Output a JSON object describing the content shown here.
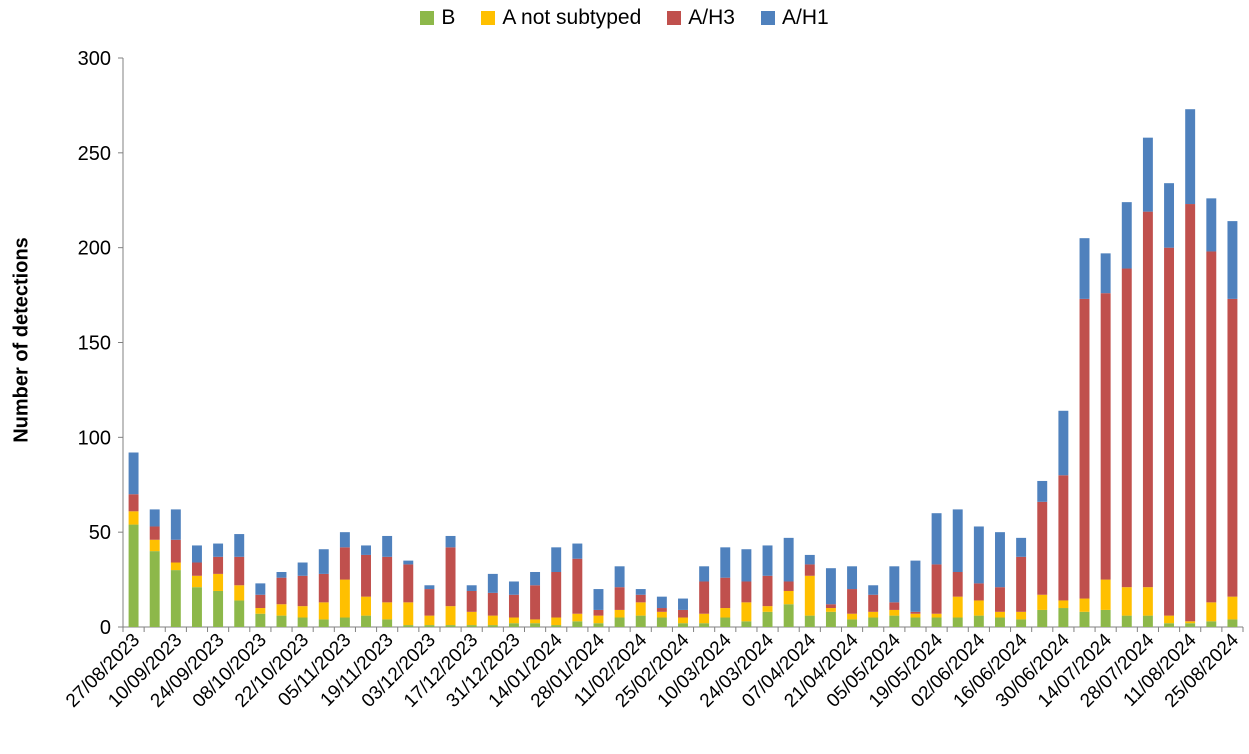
{
  "chart_data": {
    "type": "bar",
    "stacked": true,
    "title": "",
    "xlabel": "",
    "ylabel": "Number of detections",
    "ylim": [
      0,
      300
    ],
    "yticks": [
      0,
      50,
      100,
      150,
      200,
      250,
      300
    ],
    "legend_position": "top",
    "x_tick_labels": [
      "27/08/2023",
      "10/09/2023",
      "24/09/2023",
      "08/10/2023",
      "22/10/2023",
      "05/11/2023",
      "19/11/2023",
      "03/12/2023",
      "17/12/2023",
      "31/12/2023",
      "14/01/2024",
      "28/01/2024",
      "11/02/2024",
      "25/02/2024",
      "10/03/2024",
      "24/03/2024",
      "07/04/2024",
      "21/04/2024",
      "05/05/2024",
      "19/05/2024",
      "02/06/2024",
      "16/06/2024",
      "30/06/2024",
      "14/07/2024",
      "28/07/2024",
      "11/08/2024",
      "25/08/2024"
    ],
    "categories": [
      "27/08/2023",
      "03/09/2023",
      "10/09/2023",
      "17/09/2023",
      "24/09/2023",
      "01/10/2023",
      "08/10/2023",
      "15/10/2023",
      "22/10/2023",
      "29/10/2023",
      "05/11/2023",
      "12/11/2023",
      "19/11/2023",
      "26/11/2023",
      "03/12/2023",
      "10/12/2023",
      "17/12/2023",
      "24/12/2023",
      "31/12/2023",
      "07/01/2024",
      "14/01/2024",
      "21/01/2024",
      "28/01/2024",
      "04/02/2024",
      "11/02/2024",
      "18/02/2024",
      "25/02/2024",
      "03/03/2024",
      "10/03/2024",
      "17/03/2024",
      "24/03/2024",
      "31/03/2024",
      "07/04/2024",
      "14/04/2024",
      "21/04/2024",
      "28/04/2024",
      "05/05/2024",
      "12/05/2024",
      "19/05/2024",
      "26/05/2024",
      "02/06/2024",
      "09/06/2024",
      "16/06/2024",
      "23/06/2024",
      "30/06/2024",
      "07/07/2024",
      "14/07/2024",
      "21/07/2024",
      "28/07/2024",
      "04/08/2024",
      "11/08/2024",
      "18/08/2024",
      "25/08/2024"
    ],
    "series": [
      {
        "name": "B",
        "color": "#8DB84A",
        "values": [
          54,
          40,
          30,
          21,
          19,
          14,
          7,
          6,
          5,
          4,
          5,
          6,
          4,
          1,
          1,
          1,
          1,
          1,
          2,
          2,
          1,
          3,
          2,
          5,
          6,
          5,
          2,
          2,
          5,
          3,
          8,
          12,
          6,
          8,
          4,
          5,
          6,
          5,
          5,
          5,
          6,
          5,
          4,
          9,
          10,
          8,
          9,
          6,
          6,
          2,
          2,
          3,
          4
        ]
      },
      {
        "name": "A not subtyped",
        "color": "#FFC000",
        "values": [
          7,
          6,
          4,
          6,
          9,
          8,
          3,
          6,
          6,
          9,
          20,
          10,
          9,
          12,
          5,
          10,
          7,
          5,
          3,
          2,
          4,
          4,
          4,
          4,
          7,
          3,
          3,
          5,
          5,
          10,
          3,
          7,
          21,
          2,
          3,
          3,
          3,
          2,
          2,
          11,
          8,
          3,
          4,
          8,
          4,
          7,
          16,
          15,
          15,
          4,
          1,
          10,
          12
        ]
      },
      {
        "name": "A/H3",
        "color": "#C0504D",
        "values": [
          9,
          7,
          12,
          7,
          9,
          15,
          7,
          14,
          16,
          15,
          17,
          22,
          24,
          20,
          14,
          31,
          11,
          12,
          12,
          18,
          24,
          29,
          3,
          12,
          4,
          2,
          4,
          17,
          16,
          11,
          16,
          5,
          6,
          2,
          13,
          9,
          4,
          1,
          26,
          13,
          9,
          13,
          29,
          49,
          66,
          158,
          151,
          168,
          198,
          194,
          220,
          185,
          157
        ]
      },
      {
        "name": "A/H1",
        "color": "#4F81BD",
        "values": [
          22,
          9,
          16,
          9,
          7,
          12,
          6,
          3,
          7,
          13,
          8,
          5,
          11,
          2,
          2,
          6,
          3,
          10,
          7,
          7,
          13,
          8,
          11,
          11,
          3,
          6,
          6,
          8,
          16,
          17,
          16,
          23,
          5,
          19,
          12,
          5,
          19,
          27,
          27,
          33,
          30,
          29,
          10,
          11,
          34,
          32,
          21,
          35,
          39,
          34,
          50,
          28,
          41
        ]
      }
    ]
  }
}
